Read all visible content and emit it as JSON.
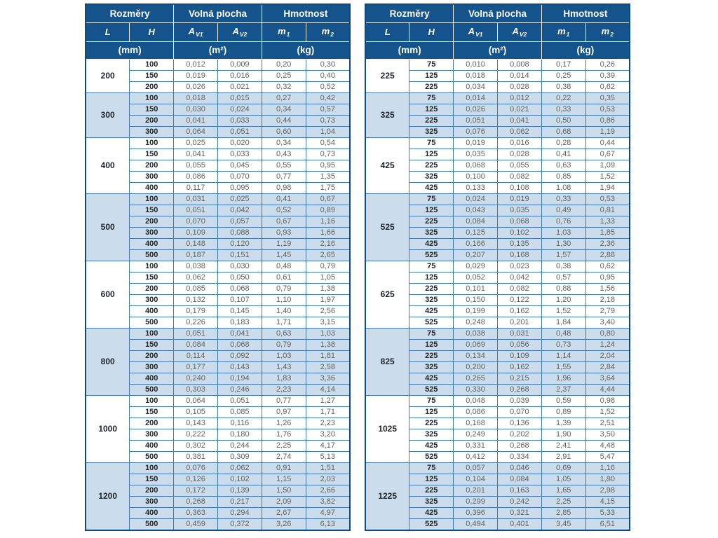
{
  "colors": {
    "page_bg": "#ffffff",
    "header_bg": "#14538c",
    "header_text": "#ffffff",
    "outer_border": "#0d4a80",
    "grid_border": "#4478ad",
    "band_white": "#ffffff",
    "band_blue": "#cbddec",
    "dim_text": "#20242b",
    "value_text": "#5d6167"
  },
  "header": {
    "groups": [
      {
        "id": "rozmery",
        "label": "Rozměry"
      },
      {
        "id": "volna-plocha",
        "label": "Volná plocha"
      },
      {
        "id": "hmotnost",
        "label": "Hmotnost"
      }
    ],
    "symbols": [
      {
        "base": "L",
        "sub": ""
      },
      {
        "base": "H",
        "sub": ""
      },
      {
        "base": "A",
        "sub": "V1"
      },
      {
        "base": "A",
        "sub": "V2"
      },
      {
        "base": "m",
        "sub": "1"
      },
      {
        "base": "m",
        "sub": "2"
      }
    ],
    "units": [
      "(mm)",
      "(m²)",
      "(kg)"
    ]
  },
  "tables": [
    {
      "id": "left",
      "groups": [
        {
          "l": "200",
          "rows": [
            [
              "100",
              "0,012",
              "0,009",
              "0,20",
              "0,30"
            ],
            [
              "150",
              "0,019",
              "0,016",
              "0,25",
              "0,40"
            ],
            [
              "200",
              "0,026",
              "0,021",
              "0,32",
              "0,52"
            ]
          ]
        },
        {
          "l": "300",
          "rows": [
            [
              "100",
              "0,018",
              "0,015",
              "0,27",
              "0,42"
            ],
            [
              "150",
              "0,030",
              "0,024",
              "0,34",
              "0,57"
            ],
            [
              "200",
              "0,041",
              "0,033",
              "0,44",
              "0,73"
            ],
            [
              "300",
              "0,064",
              "0,051",
              "0,60",
              "1,04"
            ]
          ]
        },
        {
          "l": "400",
          "rows": [
            [
              "100",
              "0,025",
              "0,020",
              "0,34",
              "0,54"
            ],
            [
              "150",
              "0,041",
              "0,033",
              "0,43",
              "0,73"
            ],
            [
              "200",
              "0,055",
              "0,045",
              "0,55",
              "0,95"
            ],
            [
              "300",
              "0,086",
              "0,070",
              "0,77",
              "1,35"
            ],
            [
              "400",
              "0,117",
              "0,095",
              "0,98",
              "1,75"
            ]
          ]
        },
        {
          "l": "500",
          "rows": [
            [
              "100",
              "0,031",
              "0,025",
              "0,41",
              "0,67"
            ],
            [
              "150",
              "0,051",
              "0,042",
              "0,52",
              "0,89"
            ],
            [
              "200",
              "0,070",
              "0,057",
              "0,67",
              "1,16"
            ],
            [
              "300",
              "0,109",
              "0,088",
              "0,93",
              "1,66"
            ],
            [
              "400",
              "0,148",
              "0,120",
              "1,19",
              "2,16"
            ],
            [
              "500",
              "0,187",
              "0,151",
              "1,45",
              "2,65"
            ]
          ]
        },
        {
          "l": "600",
          "rows": [
            [
              "100",
              "0,038",
              "0,030",
              "0,48",
              "0,79"
            ],
            [
              "150",
              "0,062",
              "0,050",
              "0,61",
              "1,05"
            ],
            [
              "200",
              "0,085",
              "0,068",
              "0,79",
              "1,38"
            ],
            [
              "300",
              "0,132",
              "0,107",
              "1,10",
              "1,97"
            ],
            [
              "400",
              "0,179",
              "0,145",
              "1,40",
              "2,56"
            ],
            [
              "500",
              "0,226",
              "0,183",
              "1,71",
              "3,15"
            ]
          ]
        },
        {
          "l": "800",
          "rows": [
            [
              "100",
              "0,051",
              "0,041",
              "0,63",
              "1,03"
            ],
            [
              "150",
              "0,084",
              "0,068",
              "0,79",
              "1,38"
            ],
            [
              "200",
              "0,114",
              "0,092",
              "1,03",
              "1,81"
            ],
            [
              "300",
              "0,177",
              "0,143",
              "1,43",
              "2,58"
            ],
            [
              "400",
              "0,240",
              "0,194",
              "1,83",
              "3,36"
            ],
            [
              "500",
              "0,303",
              "0,246",
              "2,23",
              "4,14"
            ]
          ]
        },
        {
          "l": "1000",
          "rows": [
            [
              "100",
              "0,064",
              "0,051",
              "0,77",
              "1,27"
            ],
            [
              "150",
              "0,105",
              "0,085",
              "0,97",
              "1,71"
            ],
            [
              "200",
              "0,143",
              "0,116",
              "1,26",
              "2,23"
            ],
            [
              "300",
              "0,222",
              "0,180",
              "1,76",
              "3,20"
            ],
            [
              "400",
              "0,302",
              "0,244",
              "2,25",
              "4,17"
            ],
            [
              "500",
              "0,381",
              "0,309",
              "2,74",
              "5,13"
            ]
          ]
        },
        {
          "l": "1200",
          "rows": [
            [
              "100",
              "0,076",
              "0,062",
              "0,91",
              "1,51"
            ],
            [
              "150",
              "0,126",
              "0,102",
              "1,15",
              "2,03"
            ],
            [
              "200",
              "0,172",
              "0,139",
              "1,50",
              "2,66"
            ],
            [
              "300",
              "0,268",
              "0,217",
              "2,09",
              "3,82"
            ],
            [
              "400",
              "0,363",
              "0,294",
              "2,67",
              "4,97"
            ],
            [
              "500",
              "0,459",
              "0,372",
              "3,26",
              "6,13"
            ]
          ]
        }
      ]
    },
    {
      "id": "right",
      "groups": [
        {
          "l": "225",
          "rows": [
            [
              "75",
              "0,010",
              "0,008",
              "0,17",
              "0,26"
            ],
            [
              "125",
              "0,018",
              "0,014",
              "0,25",
              "0,39"
            ],
            [
              "225",
              "0,034",
              "0,028",
              "0,38",
              "0,62"
            ]
          ]
        },
        {
          "l": "325",
          "rows": [
            [
              "75",
              "0,014",
              "0,012",
              "0,22",
              "0,35"
            ],
            [
              "125",
              "0,026",
              "0,021",
              "0,33",
              "0,53"
            ],
            [
              "225",
              "0,051",
              "0,041",
              "0,50",
              "0,86"
            ],
            [
              "325",
              "0,076",
              "0,062",
              "0,68",
              "1,19"
            ]
          ]
        },
        {
          "l": "425",
          "rows": [
            [
              "75",
              "0,019",
              "0,016",
              "0,28",
              "0,44"
            ],
            [
              "125",
              "0,035",
              "0,028",
              "0,41",
              "0,67"
            ],
            [
              "225",
              "0,068",
              "0,055",
              "0,63",
              "1,09"
            ],
            [
              "325",
              "0,100",
              "0,082",
              "0,85",
              "1,52"
            ],
            [
              "425",
              "0,133",
              "0,108",
              "1,08",
              "1,94"
            ]
          ]
        },
        {
          "l": "525",
          "rows": [
            [
              "75",
              "0,024",
              "0,019",
              "0,33",
              "0,53"
            ],
            [
              "125",
              "0,043",
              "0,035",
              "0,49",
              "0,81"
            ],
            [
              "225",
              "0,084",
              "0,068",
              "0,76",
              "1,33"
            ],
            [
              "325",
              "0,125",
              "0,102",
              "1,03",
              "1,85"
            ],
            [
              "425",
              "0,166",
              "0,135",
              "1,30",
              "2,36"
            ],
            [
              "525",
              "0,207",
              "0,168",
              "1,57",
              "2,88"
            ]
          ]
        },
        {
          "l": "625",
          "rows": [
            [
              "75",
              "0,029",
              "0,023",
              "0,38",
              "0,62"
            ],
            [
              "125",
              "0,052",
              "0,042",
              "0,57",
              "0,95"
            ],
            [
              "225",
              "0,101",
              "0,082",
              "0,88",
              "1,56"
            ],
            [
              "325",
              "0,150",
              "0,122",
              "1,20",
              "2,18"
            ],
            [
              "425",
              "0,199",
              "0,162",
              "1,52",
              "2,79"
            ],
            [
              "525",
              "0,248",
              "0,201",
              "1,84",
              "3,40"
            ]
          ]
        },
        {
          "l": "825",
          "rows": [
            [
              "75",
              "0,038",
              "0,031",
              "0,48",
              "0,80"
            ],
            [
              "125",
              "0,069",
              "0,056",
              "0,73",
              "1,24"
            ],
            [
              "225",
              "0,134",
              "0,109",
              "1,14",
              "2,04"
            ],
            [
              "325",
              "0,200",
              "0,162",
              "1,55",
              "2,84"
            ],
            [
              "425",
              "0,265",
              "0,215",
              "1,96",
              "3,64"
            ],
            [
              "525",
              "0,330",
              "0,268",
              "2,37",
              "4,44"
            ]
          ]
        },
        {
          "l": "1025",
          "rows": [
            [
              "75",
              "0,048",
              "0,039",
              "0,59",
              "0,98"
            ],
            [
              "125",
              "0,086",
              "0,070",
              "0,89",
              "1,52"
            ],
            [
              "225",
              "0,168",
              "0,136",
              "1,39",
              "2,51"
            ],
            [
              "325",
              "0,249",
              "0,202",
              "1,90",
              "3,50"
            ],
            [
              "425",
              "0,331",
              "0,268",
              "2,41",
              "4,48"
            ],
            [
              "525",
              "0,412",
              "0,334",
              "2,91",
              "5,47"
            ]
          ]
        },
        {
          "l": "1225",
          "rows": [
            [
              "75",
              "0,057",
              "0,046",
              "0,69",
              "1,16"
            ],
            [
              "125",
              "0,104",
              "0,084",
              "1,05",
              "1,80"
            ],
            [
              "225",
              "0,201",
              "0,163",
              "1,65",
              "2,98"
            ],
            [
              "325",
              "0,299",
              "0,242",
              "2,25",
              "4,15"
            ],
            [
              "425",
              "0,396",
              "0,321",
              "2,85",
              "5,33"
            ],
            [
              "525",
              "0,494",
              "0,401",
              "3,45",
              "6,51"
            ]
          ]
        }
      ]
    }
  ]
}
